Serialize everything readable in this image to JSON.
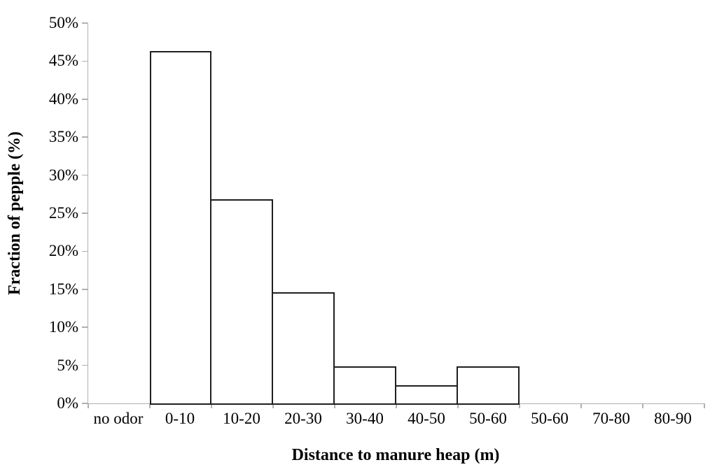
{
  "chart_data": {
    "type": "bar",
    "title": "",
    "xlabel": "Distance to manure heap (m)",
    "ylabel": "Fraction of pepple (%)",
    "categories": [
      "no odor",
      "0-10",
      "10-20",
      "20-30",
      "30-40",
      "40-50",
      "50-60",
      "50-60",
      "70-80",
      "80-90"
    ],
    "values": [
      0,
      46.3,
      26.8,
      14.6,
      4.9,
      2.4,
      4.9,
      0,
      0,
      0
    ],
    "ylim": [
      0,
      50
    ],
    "ytick_step": 5,
    "ytick_labels": [
      "0%",
      "5%",
      "10%",
      "15%",
      "20%",
      "25%",
      "30%",
      "35%",
      "40%",
      "45%",
      "50%"
    ],
    "grid": false,
    "legend": "none",
    "bar_fill": "#ffffff",
    "bar_border": "#1f1f1f",
    "axis_color": "#b0b0b0",
    "text_color": "#000000"
  }
}
